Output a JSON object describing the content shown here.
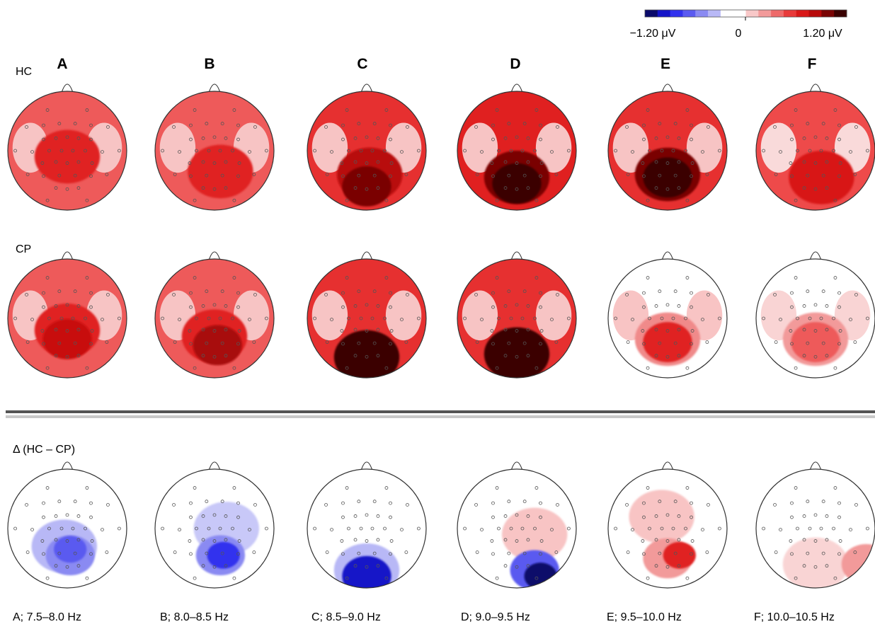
{
  "colorbar": {
    "min_label": "−1.20 μV",
    "zero_label": "0",
    "max_label": "1.20 μV",
    "colors": [
      "#0a0a6a",
      "#1414c8",
      "#3232ee",
      "#5a5af0",
      "#8a8af2",
      "#b8b8f6",
      "#ffffff",
      "#ffffff",
      "#f8c8c8",
      "#f29a9a",
      "#ee6a6a",
      "#e83a3a",
      "#d81818",
      "#b80a0a",
      "#7a0505",
      "#3a0202"
    ]
  },
  "columns": [
    "A",
    "B",
    "C",
    "D",
    "E",
    "F"
  ],
  "rows": [
    {
      "key": "hc",
      "label": "HC"
    },
    {
      "key": "cp",
      "label": "CP"
    },
    {
      "key": "delta",
      "label": "Δ (HC – CP)"
    }
  ],
  "bands": [
    "A; 7.5–8.0 Hz",
    "B; 8.0–8.5 Hz",
    "C; 8.5–9.0 Hz",
    "D; 9.0–9.5 Hz",
    "E; 9.5–10.0 Hz",
    "F; 10.0–10.5 Hz"
  ],
  "maps": {
    "hc": [
      {
        "base": "#ee5a5a",
        "light": "#f7c4c4",
        "blobs": [
          {
            "ax": 0,
            "ay": 0.1,
            "color": "#e02020"
          }
        ]
      },
      {
        "base": "#ee5a5a",
        "light": "#f7c4c4",
        "blobs": [
          {
            "ax": 0.1,
            "ay": 0.35,
            "color": "#e02020"
          }
        ]
      },
      {
        "base": "#e63030",
        "light": "#f7c4c4",
        "blobs": [
          {
            "ax": 0.05,
            "ay": 0.4,
            "color": "#b80a0a"
          },
          {
            "ax": 0,
            "ay": 0.6,
            "color": "#7a0505"
          }
        ]
      },
      {
        "base": "#e02020",
        "light": "#f7c4c4",
        "blobs": [
          {
            "ax": 0,
            "ay": 0.45,
            "color": "#7a0505"
          },
          {
            "ax": 0,
            "ay": 0.55,
            "color": "#3a0202"
          }
        ]
      },
      {
        "base": "#e63030",
        "light": "#f7c4c4",
        "blobs": [
          {
            "ax": 0,
            "ay": 0.4,
            "color": "#7a0505"
          },
          {
            "ax": 0,
            "ay": 0.45,
            "color": "#3a0202"
          }
        ]
      },
      {
        "base": "#ee4a4a",
        "light": "#f9dada",
        "blobs": [
          {
            "ax": 0.1,
            "ay": 0.45,
            "color": "#d81818"
          }
        ]
      }
    ],
    "cp": [
      {
        "base": "#ee5a5a",
        "light": "#f7c4c4",
        "blobs": [
          {
            "ax": 0,
            "ay": 0.2,
            "color": "#e02020"
          },
          {
            "ax": 0,
            "ay": 0.35,
            "color": "#c81010"
          }
        ]
      },
      {
        "base": "#ee5a5a",
        "light": "#f7c4c4",
        "blobs": [
          {
            "ax": 0,
            "ay": 0.3,
            "color": "#e02020"
          },
          {
            "ax": 0.05,
            "ay": 0.45,
            "color": "#a80808"
          }
        ]
      },
      {
        "base": "#e63030",
        "light": "#f7c4c4",
        "blobs": [
          {
            "ax": 0,
            "ay": 0.65,
            "color": "#3a0202"
          }
        ]
      },
      {
        "base": "#e63030",
        "light": "#f7c4c4",
        "blobs": [
          {
            "ax": 0,
            "ay": 0.6,
            "color": "#3a0202"
          }
        ]
      },
      {
        "base": "#ffffff",
        "light": "#f8c4c4",
        "blobs": [
          {
            "ax": 0,
            "ay": 0.35,
            "color": "#f08a8a"
          },
          {
            "ax": 0,
            "ay": 0.4,
            "color": "#e02020"
          }
        ]
      },
      {
        "base": "#ffffff",
        "light": "#f9d4d4",
        "blobs": [
          {
            "ax": 0,
            "ay": 0.35,
            "color": "#f29a9a"
          },
          {
            "ax": 0,
            "ay": 0.4,
            "color": "#ee5a5a"
          }
        ]
      }
    ],
    "delta": [
      {
        "base": "#ffffff",
        "light": "#ffffff",
        "blobs": [
          {
            "ax": -0.05,
            "ay": 0.3,
            "color": "#b8b8f6"
          },
          {
            "ax": 0.05,
            "ay": 0.45,
            "color": "#8a8af2"
          },
          {
            "ax": 0.05,
            "ay": 0.35,
            "color": "#5a5af0"
          }
        ]
      },
      {
        "base": "#ffffff",
        "light": "#ffffff",
        "blobs": [
          {
            "ax": 0.2,
            "ay": 0,
            "color": "#c8c8f8"
          },
          {
            "ax": 0.1,
            "ay": 0.45,
            "color": "#8a8af2"
          },
          {
            "ax": 0.15,
            "ay": 0.45,
            "color": "#3232ee"
          }
        ]
      },
      {
        "base": "#ffffff",
        "light": "#ffffff",
        "blobs": [
          {
            "ax": 0,
            "ay": 0.7,
            "color": "#b8b8f6"
          },
          {
            "ax": 0,
            "ay": 0.8,
            "color": "#1414c8"
          }
        ]
      },
      {
        "base": "#ffffff",
        "light": "#ffffff",
        "blobs": [
          {
            "ax": 0.3,
            "ay": 0.1,
            "color": "#f8c4c4"
          },
          {
            "ax": 0.3,
            "ay": 0.7,
            "color": "#5a5af0"
          },
          {
            "ax": 0.4,
            "ay": 0.8,
            "color": "#0a0a6a"
          }
        ]
      },
      {
        "base": "#ffffff",
        "light": "#ffffff",
        "blobs": [
          {
            "ax": -0.1,
            "ay": -0.2,
            "color": "#f8c4c4"
          },
          {
            "ax": 0,
            "ay": 0.5,
            "color": "#f29a9a"
          },
          {
            "ax": 0.2,
            "ay": 0.45,
            "color": "#e02020"
          }
        ]
      },
      {
        "base": "#ffffff",
        "light": "#ffffff",
        "blobs": [
          {
            "ax": 0,
            "ay": 0.6,
            "color": "#f9d4d4"
          },
          {
            "ax": 0.85,
            "ay": 0.6,
            "color": "#f29a9a"
          }
        ]
      }
    ]
  }
}
